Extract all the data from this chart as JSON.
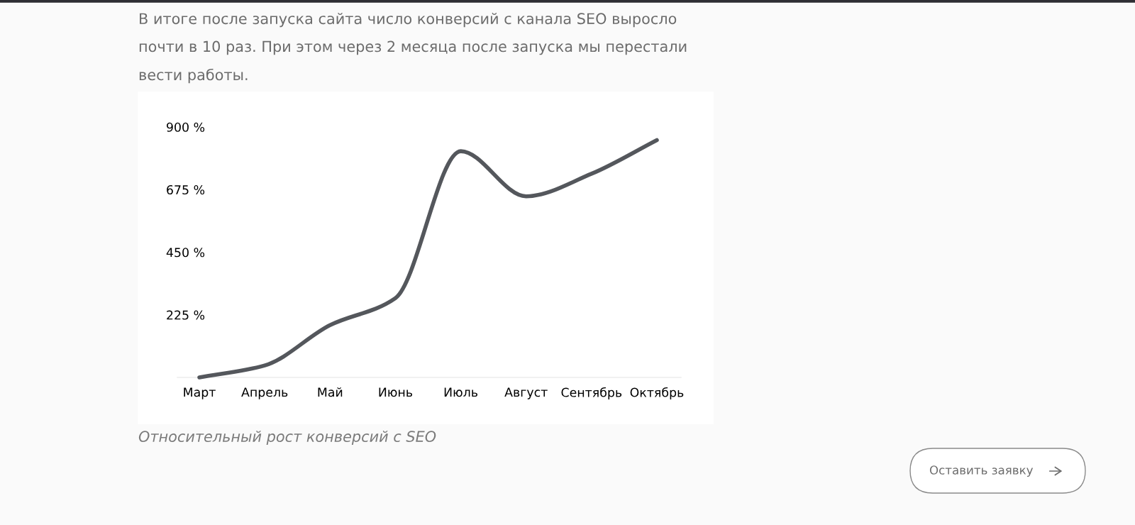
{
  "chart_data": {
    "type": "line",
    "title": "В итоге после запуска сайта число конверсий с канала SEO выросло\nпочти в 10 раз. При этом через 2 месяца после запуска мы перестали\nвести работы.",
    "categories": [
      "Март",
      "Апрель",
      "Май",
      "Июнь",
      "Июль",
      "Август",
      "Сентябрь",
      "Октябрь"
    ],
    "series": [
      {
        "color": "#54575c",
        "values": [
          0,
          43,
          188,
          285,
          813,
          651,
          732,
          853
        ]
      }
    ],
    "ylim": [
      0,
      900
    ],
    "yticks": [
      {
        "value": 225,
        "label": "225 %"
      },
      {
        "value": 450,
        "label": "450 %"
      },
      {
        "value": 675,
        "label": "675 %"
      },
      {
        "value": 900,
        "label": "900 %"
      }
    ],
    "grid": false,
    "marker": "none",
    "line_style": "solid",
    "annotations": [
      "Относительный рост конверсий с SEO",
      "Оставить заявку"
    ]
  }
}
